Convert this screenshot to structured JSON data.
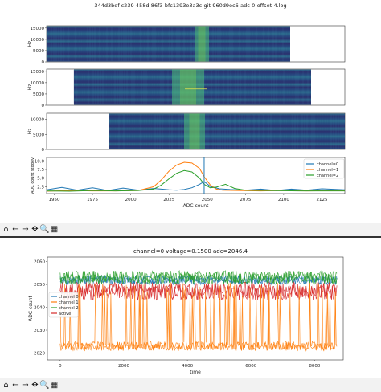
{
  "window1": {
    "suptitle": "344d3bdf-c239-458d-86f3-bfc1393e3a3c-git-960d9ec6-adc-0-offset-4.log"
  },
  "window2": {
    "title": "channel=0 voltage=0.1500 adc=2046.4"
  },
  "toolbar": {
    "buttons": [
      {
        "name": "home-icon",
        "glyph": "⌂"
      },
      {
        "name": "back-icon",
        "glyph": "←"
      },
      {
        "name": "forward-icon",
        "glyph": "→"
      },
      {
        "name": "pan-icon",
        "glyph": "✥"
      },
      {
        "name": "zoom-icon",
        "glyph": "🔍"
      },
      {
        "name": "subplots-icon",
        "glyph": "▦"
      }
    ]
  },
  "colors": {
    "ch0": "#1f77b4",
    "ch1": "#ff7f0e",
    "ch2": "#2ca02c",
    "active": "#d62728",
    "spec_dark": "#2b2f6e",
    "spec_mid": "#2d6d8e",
    "spec_hot": "#4fc07a"
  },
  "chart_data": [
    {
      "type": "heatmap",
      "ylabel": "Hz",
      "yticks": [
        "0",
        "5000",
        "10000",
        "15000"
      ],
      "x_extent": [
        1960,
        2100
      ]
    },
    {
      "type": "heatmap",
      "ylabel": "Hz",
      "yticks": [
        "0",
        "5000",
        "10000",
        "15000"
      ],
      "x_extent": [
        1980,
        2120
      ]
    },
    {
      "type": "heatmap",
      "ylabel": "Hz",
      "yticks": [
        "0",
        "5000",
        "10000"
      ],
      "x_extent": [
        2000,
        2140
      ]
    },
    {
      "type": "line",
      "ylabel": "ADC count stddev",
      "xlabel": "ADC count",
      "xticks": [
        "1950",
        "1975",
        "2000",
        "2025",
        "2050",
        "2075",
        "2100",
        "2125"
      ],
      "yticks": [
        "2.5",
        "5.0",
        "7.5",
        "10.0"
      ],
      "xlim": [
        1945,
        2140
      ],
      "ylim": [
        0.5,
        11
      ],
      "vline": 2048,
      "legend": "upper right",
      "series": [
        {
          "name": "channel=0",
          "x": [
            1945,
            1955,
            1965,
            1975,
            1985,
            1995,
            2005,
            2015,
            2020,
            2025,
            2030,
            2035,
            2040,
            2045,
            2048,
            2052,
            2058,
            2065,
            2075,
            2085,
            2095,
            2105,
            2115,
            2125,
            2140
          ],
          "values": [
            1.6,
            2.3,
            1.5,
            2.2,
            1.4,
            2.1,
            1.5,
            2.0,
            1.8,
            1.6,
            1.5,
            1.7,
            2.2,
            3.2,
            4.0,
            2.6,
            1.9,
            1.7,
            1.5,
            1.8,
            1.4,
            1.8,
            1.5,
            1.9,
            1.6
          ]
        },
        {
          "name": "channel=1",
          "x": [
            1945,
            1960,
            1975,
            1990,
            2005,
            2015,
            2020,
            2025,
            2030,
            2035,
            2040,
            2045,
            2048,
            2052,
            2056,
            2060,
            2070,
            2085,
            2100,
            2115,
            2140
          ],
          "values": [
            1.2,
            1.4,
            1.3,
            1.3,
            1.4,
            2.5,
            4.5,
            7.0,
            8.8,
            9.6,
            9.4,
            7.8,
            5.4,
            3.0,
            1.8,
            1.5,
            1.4,
            1.3,
            1.4,
            1.3,
            1.4
          ]
        },
        {
          "name": "channel=2",
          "x": [
            1945,
            1960,
            1975,
            1990,
            2005,
            2015,
            2020,
            2025,
            2030,
            2035,
            2040,
            2045,
            2048,
            2052,
            2056,
            2062,
            2068,
            2075,
            2090,
            2110,
            2140
          ],
          "values": [
            1.3,
            1.2,
            1.4,
            1.3,
            1.4,
            1.8,
            3.0,
            4.8,
            6.4,
            7.2,
            6.8,
            5.0,
            3.2,
            2.2,
            2.4,
            3.2,
            2.0,
            1.5,
            1.4,
            1.3,
            1.3
          ]
        }
      ]
    },
    {
      "type": "line",
      "title": "channel=0 voltage=0.1500 adc=2046.4",
      "xlabel": "time",
      "ylabel": "ADC count",
      "xticks": [
        "0",
        "2000",
        "4000",
        "6000",
        "8000"
      ],
      "yticks": [
        "2020",
        "2030",
        "2040",
        "2050",
        "2060"
      ],
      "xlim": [
        -400,
        8900
      ],
      "ylim": [
        2017,
        2062
      ],
      "legend": "center-left",
      "series": [
        {
          "name": "channel 0",
          "base": 2052,
          "spread": 2
        },
        {
          "name": "channel 1",
          "base": 2023,
          "spread": 2,
          "jumps_to": 2048
        },
        {
          "name": "channel 2",
          "base": 2053,
          "spread": 3
        },
        {
          "name": "active",
          "base": 2047,
          "spread": 4
        }
      ]
    }
  ]
}
